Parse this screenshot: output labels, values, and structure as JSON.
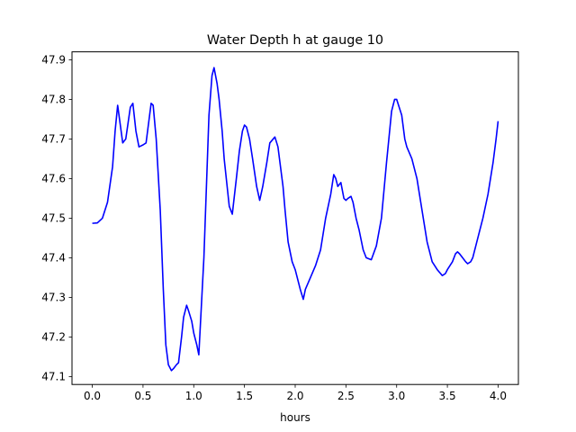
{
  "chart_data": {
    "type": "line",
    "title": "Water Depth h at gauge 10",
    "xlabel": "hours",
    "ylabel": "",
    "xlim": [
      -0.2,
      4.2
    ],
    "ylim": [
      47.08,
      47.92
    ],
    "xticks": [
      0.0,
      0.5,
      1.0,
      1.5,
      2.0,
      2.5,
      3.0,
      3.5,
      4.0
    ],
    "xtick_labels": [
      "0.0",
      "0.5",
      "1.0",
      "1.5",
      "2.0",
      "2.5",
      "3.0",
      "3.5",
      "4.0"
    ],
    "yticks": [
      47.1,
      47.2,
      47.3,
      47.4,
      47.5,
      47.6,
      47.7,
      47.8,
      47.9
    ],
    "ytick_labels": [
      "47.1",
      "47.2",
      "47.3",
      "47.4",
      "47.5",
      "47.6",
      "47.7",
      "47.8",
      "47.9"
    ],
    "grid": false,
    "legend": "none",
    "series": [
      {
        "color": "#0000ff",
        "x": [
          0.0,
          0.05,
          0.1,
          0.15,
          0.2,
          0.225,
          0.25,
          0.3,
          0.33,
          0.375,
          0.4,
          0.43,
          0.46,
          0.5,
          0.53,
          0.58,
          0.6,
          0.63,
          0.67,
          0.7,
          0.725,
          0.75,
          0.78,
          0.8,
          0.83,
          0.85,
          0.88,
          0.9,
          0.93,
          0.95,
          0.98,
          1.0,
          1.03,
          1.05,
          1.1,
          1.15,
          1.18,
          1.2,
          1.23,
          1.25,
          1.28,
          1.3,
          1.35,
          1.38,
          1.42,
          1.45,
          1.48,
          1.5,
          1.52,
          1.55,
          1.58,
          1.62,
          1.65,
          1.68,
          1.72,
          1.75,
          1.8,
          1.83,
          1.85,
          1.88,
          1.9,
          1.93,
          1.97,
          2.0,
          2.05,
          2.08,
          2.1,
          2.15,
          2.2,
          2.25,
          2.3,
          2.35,
          2.38,
          2.4,
          2.42,
          2.45,
          2.48,
          2.5,
          2.52,
          2.55,
          2.57,
          2.6,
          2.63,
          2.67,
          2.7,
          2.75,
          2.8,
          2.85,
          2.9,
          2.95,
          2.98,
          3.0,
          3.05,
          3.08,
          3.1,
          3.15,
          3.2,
          3.25,
          3.3,
          3.35,
          3.4,
          3.45,
          3.48,
          3.5,
          3.55,
          3.58,
          3.6,
          3.62,
          3.65,
          3.68,
          3.7,
          3.73,
          3.75,
          3.8,
          3.85,
          3.9,
          3.95,
          3.98,
          4.0
        ],
        "y": [
          47.487,
          47.488,
          47.5,
          47.54,
          47.63,
          47.72,
          47.785,
          47.69,
          47.7,
          47.78,
          47.79,
          47.72,
          47.68,
          47.685,
          47.69,
          47.79,
          47.785,
          47.7,
          47.52,
          47.32,
          47.18,
          47.13,
          47.115,
          47.12,
          47.13,
          47.135,
          47.2,
          47.25,
          47.28,
          47.265,
          47.24,
          47.21,
          47.18,
          47.155,
          47.4,
          47.76,
          47.86,
          47.88,
          47.84,
          47.8,
          47.72,
          47.65,
          47.53,
          47.51,
          47.6,
          47.67,
          47.72,
          47.735,
          47.73,
          47.7,
          47.65,
          47.58,
          47.545,
          47.58,
          47.64,
          47.69,
          47.705,
          47.68,
          47.64,
          47.58,
          47.52,
          47.44,
          47.39,
          47.37,
          47.32,
          47.295,
          47.32,
          47.35,
          47.38,
          47.42,
          47.5,
          47.56,
          47.61,
          47.6,
          47.58,
          47.59,
          47.55,
          47.545,
          47.55,
          47.555,
          47.54,
          47.5,
          47.47,
          47.42,
          47.4,
          47.395,
          47.43,
          47.5,
          47.64,
          47.77,
          47.8,
          47.8,
          47.76,
          47.7,
          47.68,
          47.65,
          47.6,
          47.52,
          47.44,
          47.39,
          47.37,
          47.355,
          47.36,
          47.37,
          47.39,
          47.41,
          47.415,
          47.41,
          47.4,
          47.39,
          47.385,
          47.39,
          47.4,
          47.45,
          47.5,
          47.56,
          47.64,
          47.7,
          47.745
        ]
      }
    ]
  }
}
